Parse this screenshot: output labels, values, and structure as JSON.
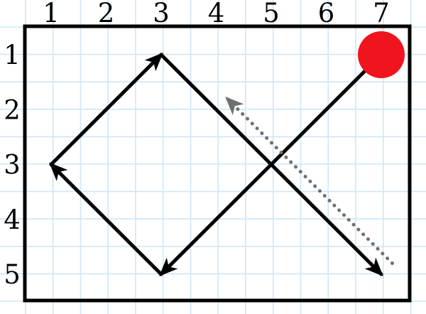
{
  "colors": {
    "grid": "#cfe6f5",
    "frame": "#000000",
    "path": "#000000",
    "dotted": "#707070",
    "start_dot": "#f0141e"
  },
  "columns": [
    "1",
    "2",
    "3",
    "4",
    "5",
    "6",
    "7"
  ],
  "rows": [
    "1",
    "2",
    "3",
    "4",
    "5"
  ],
  "start_point": {
    "col": 7,
    "row": 1
  },
  "path_points": [
    {
      "col": 7,
      "row": 1
    },
    {
      "col": 3,
      "row": 5
    },
    {
      "col": 1,
      "row": 3
    },
    {
      "col": 3,
      "row": 1
    },
    {
      "col": 7,
      "row": 5
    }
  ],
  "dotted_arrow": {
    "from": {
      "col": 7.2,
      "row": 4.8
    },
    "to": {
      "col": 4.2,
      "row": 1.8
    }
  }
}
